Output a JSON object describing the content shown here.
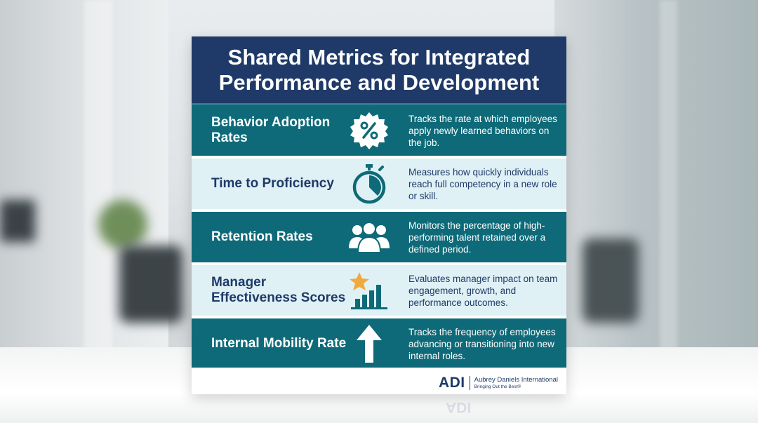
{
  "poster": {
    "title_line1": "Shared Metrics for Integrated",
    "title_line2": "Performance and Development",
    "colors": {
      "header": "#1f3a68",
      "dark_row": "#0e6a78",
      "light_row": "#dff1f5",
      "accent_star": "#f2a93b"
    },
    "metrics": [
      {
        "label": "Behavior Adoption Rates",
        "icon": "percent-badge-icon",
        "description": "Tracks the rate at which employees apply newly learned behaviors on the job."
      },
      {
        "label": "Time to Proficiency",
        "icon": "stopwatch-icon",
        "description": "Measures how quickly individuals reach full competency in a new role or skill."
      },
      {
        "label": "Retention Rates",
        "icon": "people-group-icon",
        "description": "Monitors the percentage of high-performing talent retained over a defined period."
      },
      {
        "label": "Manager Effectiveness Scores",
        "icon": "star-bar-chart-icon",
        "description": "Evaluates manager impact on team engagement, growth, and performance outcomes."
      },
      {
        "label": "Internal Mobility Rate",
        "icon": "arrow-up-icon",
        "description": "Tracks the frequency of employees advancing or transitioning into new internal roles."
      }
    ],
    "logo": {
      "mark": "ADI",
      "name": "Aubrey Daniels International",
      "tagline": "Bringing Out the Best®"
    }
  }
}
